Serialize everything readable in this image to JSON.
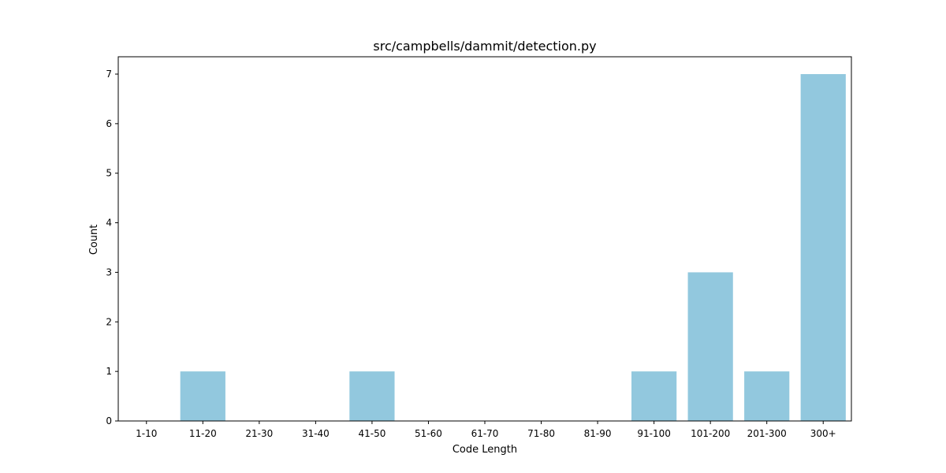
{
  "chart_data": {
    "type": "bar",
    "title": "src/campbells/dammit/detection.py",
    "xlabel": "Code Length",
    "ylabel": "Count",
    "categories": [
      "1-10",
      "11-20",
      "21-30",
      "31-40",
      "41-50",
      "51-60",
      "61-70",
      "71-80",
      "81-90",
      "91-100",
      "101-200",
      "201-300",
      "300+"
    ],
    "values": [
      0,
      1,
      0,
      0,
      1,
      0,
      0,
      0,
      0,
      1,
      3,
      1,
      7
    ],
    "yticks": [
      "0",
      "1",
      "2",
      "3",
      "4",
      "5",
      "6",
      "7"
    ],
    "ylim": [
      0,
      7.35
    ],
    "grid": false,
    "legend": "none",
    "bar_color": "#92c8de",
    "axis_color": "#000000"
  }
}
